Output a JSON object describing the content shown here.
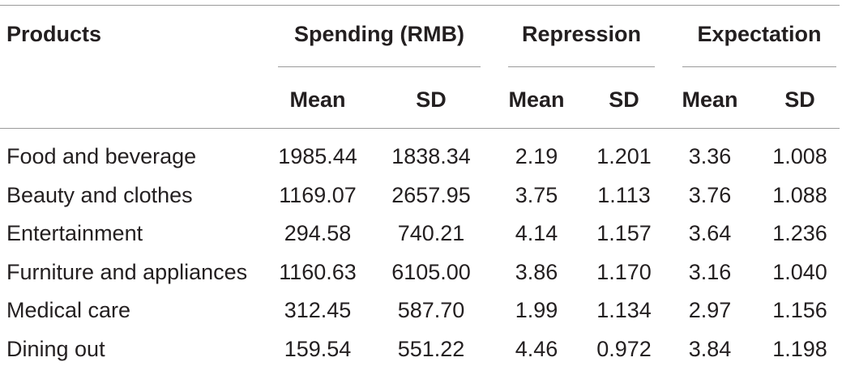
{
  "header": {
    "products": "Products",
    "groups": [
      {
        "label": "Spending (RMB)",
        "mean": "Mean",
        "sd": "SD"
      },
      {
        "label": "Repression",
        "mean": "Mean",
        "sd": "SD"
      },
      {
        "label": "Expectation",
        "mean": "Mean",
        "sd": "SD"
      }
    ]
  },
  "rows": [
    {
      "product": "Food and beverage",
      "values": [
        "1985.44",
        "1838.34",
        "2.19",
        "1.201",
        "3.36",
        "1.008"
      ]
    },
    {
      "product": "Beauty and clothes",
      "values": [
        "1169.07",
        "2657.95",
        "3.75",
        "1.113",
        "3.76",
        "1.088"
      ]
    },
    {
      "product": "Entertainment",
      "values": [
        "294.58",
        "740.21",
        "4.14",
        "1.157",
        "3.64",
        "1.236"
      ]
    },
    {
      "product": "Furniture and appliances",
      "values": [
        "1160.63",
        "6105.00",
        "3.86",
        "1.170",
        "3.16",
        "1.040"
      ]
    },
    {
      "product": "Medical care",
      "values": [
        "312.45",
        "587.70",
        "1.99",
        "1.134",
        "2.97",
        "1.156"
      ]
    },
    {
      "product": "Dining out",
      "values": [
        "159.54",
        "551.22",
        "4.46",
        "0.972",
        "3.84",
        "1.198"
      ]
    }
  ]
}
